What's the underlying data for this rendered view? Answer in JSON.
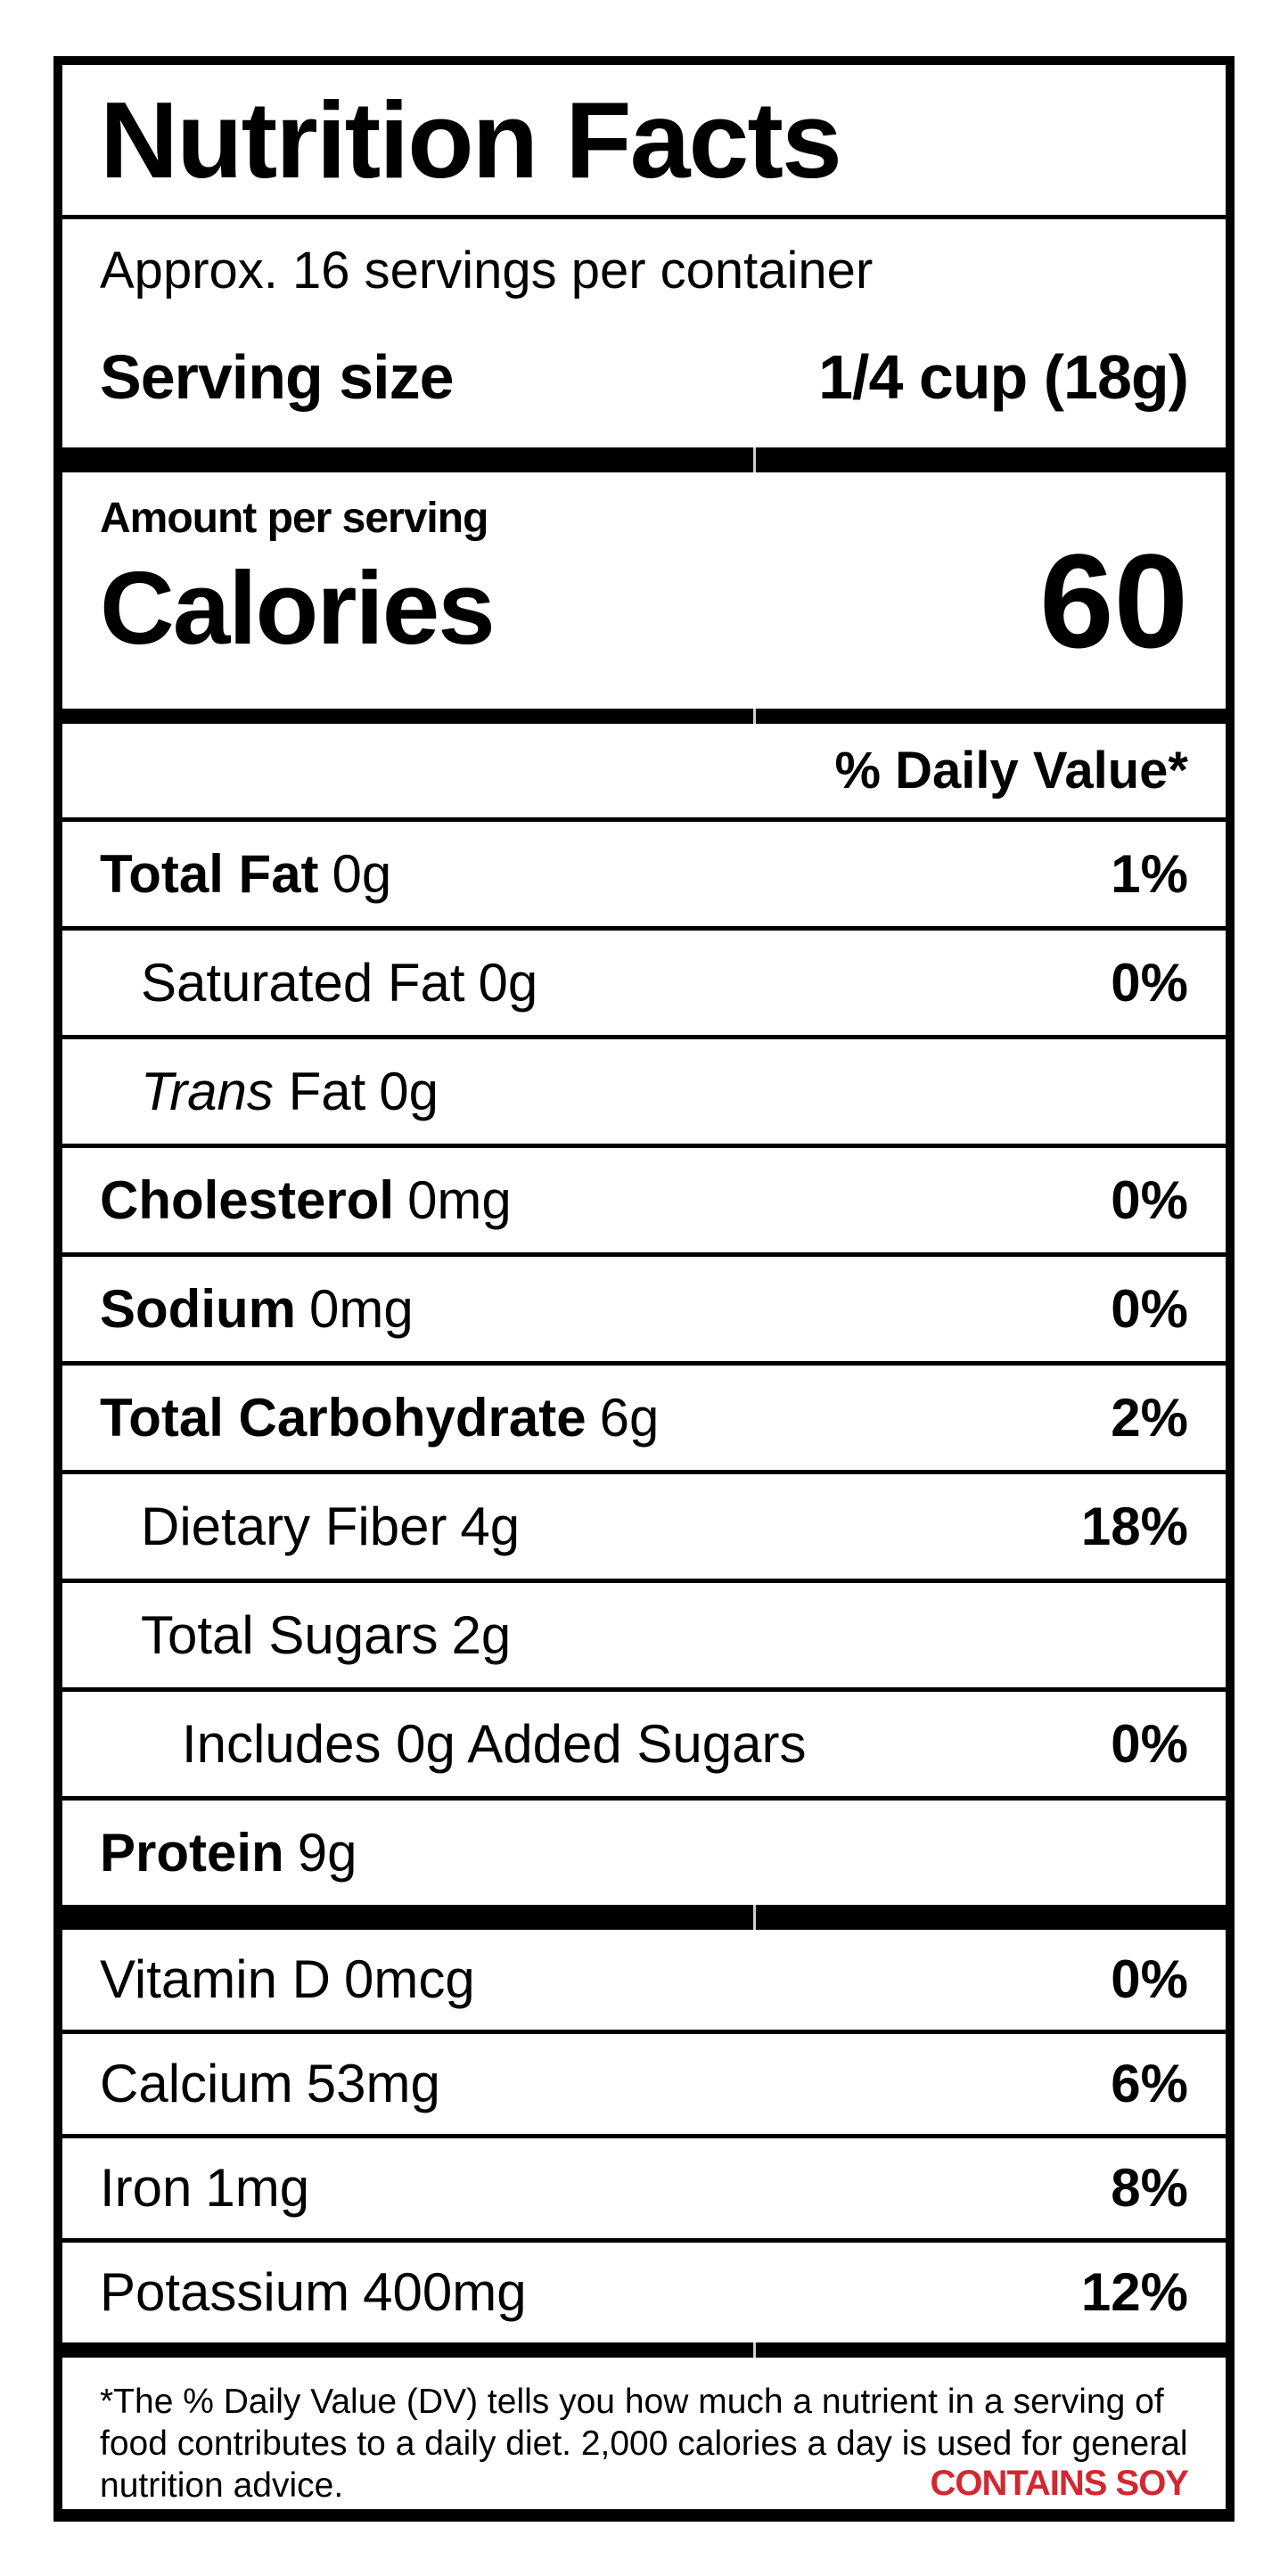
{
  "label": {
    "title": "Nutrition Facts",
    "servings_per_container": "Approx. 16 servings per container",
    "serving_size": {
      "label": "Serving size",
      "value": "1/4 cup (18g)"
    },
    "calories": {
      "amount_per_serving_label": "Amount per serving",
      "label": "Calories",
      "value": "60"
    },
    "daily_value_header": "% Daily Value*",
    "nutrients": [
      {
        "name": "Total Fat",
        "amount": "0g",
        "dv": "1%"
      },
      {
        "name": "Saturated Fat",
        "amount": "0g",
        "dv": "0%"
      },
      {
        "name_italic": "Trans",
        "name": " Fat",
        "amount": "0g",
        "dv": ""
      },
      {
        "name": "Cholesterol",
        "amount": "0mg",
        "dv": "0%"
      },
      {
        "name": "Sodium",
        "amount": "0mg",
        "dv": "0%"
      },
      {
        "name": "Total Carbohydrate",
        "amount": "6g",
        "dv": "2%"
      },
      {
        "name": "Dietary Fiber",
        "amount": "4g",
        "dv": "18%"
      },
      {
        "name": "Total Sugars",
        "amount": "2g",
        "dv": ""
      },
      {
        "name": "Includes 0g Added Sugars",
        "amount": "",
        "dv": "0%"
      },
      {
        "name": "Protein",
        "amount": "9g",
        "dv": ""
      }
    ],
    "vitamins": [
      {
        "name": "Vitamin D",
        "amount": "0mcg",
        "dv": "0%"
      },
      {
        "name": "Calcium",
        "amount": "53mg",
        "dv": "6%"
      },
      {
        "name": "Iron",
        "amount": "1mg",
        "dv": "8%"
      },
      {
        "name": "Potassium",
        "amount": "400mg",
        "dv": "12%"
      }
    ],
    "footnote": "*The % Daily Value (DV) tells you how much a nutrient in a serving of food contributes to a daily diet. 2,000 calories a day is used for general nutrition advice.",
    "allergen_statement": "CONTAINS SOY",
    "colors": {
      "allergen_red": "#d22832",
      "text": "#000000",
      "background": "#ffffff"
    }
  }
}
